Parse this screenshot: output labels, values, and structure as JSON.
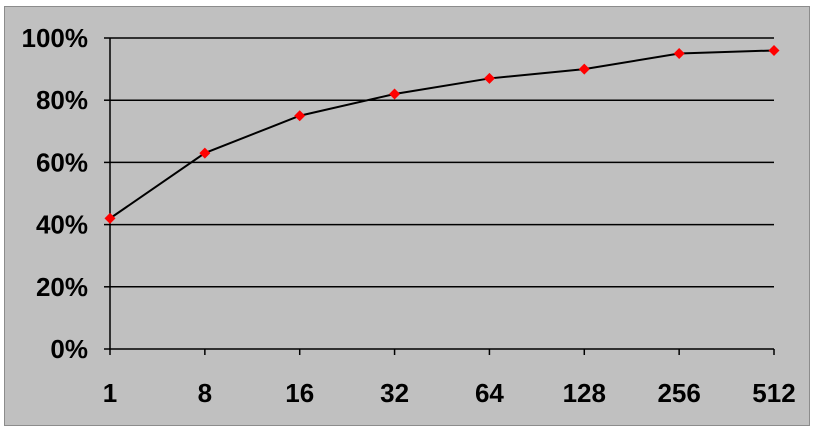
{
  "chart_data": {
    "type": "line",
    "title": "",
    "xlabel": "",
    "ylabel": "",
    "x": [
      "1",
      "8",
      "16",
      "32",
      "64",
      "128",
      "256",
      "512"
    ],
    "series": [
      {
        "values": [
          42,
          63,
          75,
          82,
          87,
          90,
          95,
          96
        ]
      }
    ],
    "y_ticks": [
      "0%",
      "20%",
      "40%",
      "60%",
      "80%",
      "100%"
    ],
    "ylim": [
      0,
      100
    ],
    "grid": "horizontal",
    "legend": "none",
    "colors": {
      "background": "#c0c0c0",
      "line": "#000000",
      "marker": "#ff0000",
      "grid": "#000000"
    }
  }
}
